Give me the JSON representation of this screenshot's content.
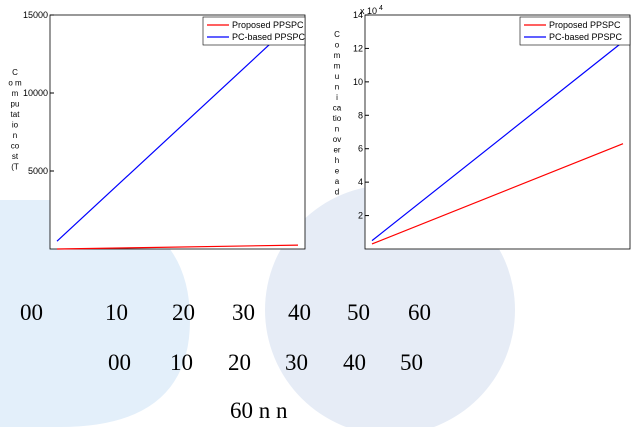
{
  "chart_data": [
    {
      "type": "line",
      "y_label_lines": [
        "C",
        "o m",
        "m",
        "pu",
        "tat",
        "io",
        "n",
        "co",
        "st",
        "(T"
      ],
      "ylim": [
        0,
        15000
      ],
      "yticks": [
        5000,
        10000,
        15000
      ],
      "series": [
        {
          "name": "Proposed PPSPC",
          "color": "#ff0000",
          "values": [
            0,
            250
          ]
        },
        {
          "name": "PC-based PPSPC",
          "color": "#0000ff",
          "values": [
            500,
            14800
          ]
        }
      ]
    },
    {
      "type": "line",
      "y_label_lines": [
        "C",
        "o",
        "m",
        "m",
        "u",
        "n",
        "i",
        "ca",
        "tio",
        "n",
        "ov",
        "er",
        "h",
        "e",
        "a",
        "d"
      ],
      "y_multiplier": {
        "base": "x 10",
        "exp": "4"
      },
      "ylim": [
        0,
        14
      ],
      "yticks": [
        2,
        4,
        6,
        8,
        10,
        12,
        14
      ],
      "series": [
        {
          "name": "Proposed PPSPC",
          "color": "#ff0000",
          "values": [
            0.3,
            6.3
          ]
        },
        {
          "name": "PC-based PPSPC",
          "color": "#0000ff",
          "values": [
            0.5,
            12.4
          ]
        }
      ]
    }
  ],
  "footer_lines": [
    [
      "00",
      "10",
      "20",
      "30",
      "40",
      "50",
      "60"
    ],
    [
      "00",
      "10",
      "20",
      "30",
      "40",
      "50"
    ],
    [
      "60 n n"
    ]
  ]
}
